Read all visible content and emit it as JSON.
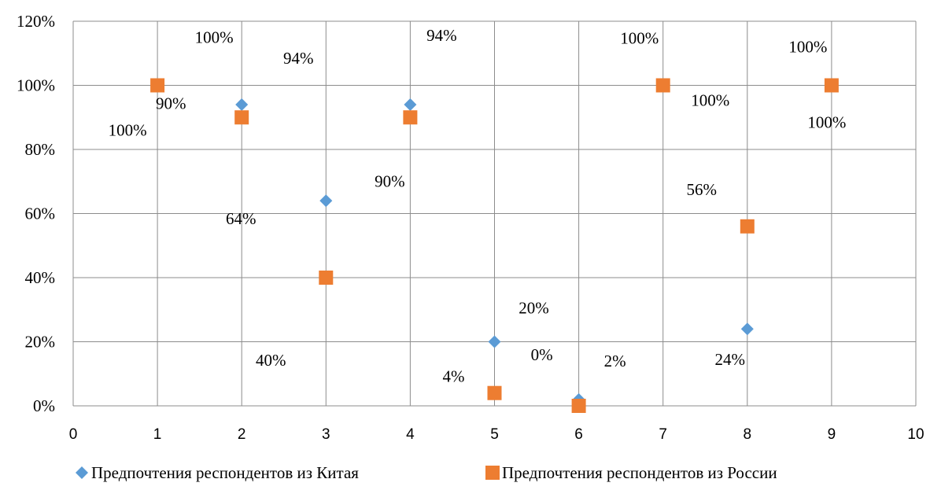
{
  "chart_data": {
    "type": "scatter",
    "xlim": [
      0,
      10
    ],
    "ylim": [
      0,
      1.2
    ],
    "x_ticks": [
      "0",
      "1",
      "2",
      "3",
      "4",
      "5",
      "6",
      "7",
      "8",
      "9",
      "10"
    ],
    "y_ticks": [
      "0%",
      "20%",
      "40%",
      "60%",
      "80%",
      "100%",
      "120%"
    ],
    "grid": true,
    "legend_position": "bottom",
    "series": [
      {
        "name": "Предпочтения респондентов из Китая",
        "marker": "diamond",
        "color": "#5B9BD5",
        "points": [
          {
            "x": 1,
            "y": 1.0,
            "label": "100%"
          },
          {
            "x": 2,
            "y": 0.94,
            "label": "94%"
          },
          {
            "x": 3,
            "y": 0.64,
            "label": "64%"
          },
          {
            "x": 4,
            "y": 0.94,
            "label": "94%"
          },
          {
            "x": 5,
            "y": 0.2,
            "label": "20%"
          },
          {
            "x": 6,
            "y": 0.02,
            "label": "2%"
          },
          {
            "x": 7,
            "y": 1.0,
            "label": "100%"
          },
          {
            "x": 8,
            "y": 0.24,
            "label": "24%"
          },
          {
            "x": 9,
            "y": 1.0,
            "label": "100%"
          }
        ]
      },
      {
        "name": "Предпочтения респондентов из России",
        "marker": "square",
        "color": "#ED7D31",
        "points": [
          {
            "x": 1,
            "y": 1.0,
            "label": "100%"
          },
          {
            "x": 2,
            "y": 0.9,
            "label": "90%"
          },
          {
            "x": 3,
            "y": 0.4,
            "label": "40%"
          },
          {
            "x": 4,
            "y": 0.9,
            "label": "90%"
          },
          {
            "x": 5,
            "y": 0.04,
            "label": "4%"
          },
          {
            "x": 6,
            "y": 0.0,
            "label": "0%"
          },
          {
            "x": 7,
            "y": 1.0,
            "label": "100%"
          },
          {
            "x": 8,
            "y": 0.56,
            "label": "56%"
          },
          {
            "x": 9,
            "y": 1.0,
            "label": "100%"
          }
        ]
      }
    ]
  }
}
